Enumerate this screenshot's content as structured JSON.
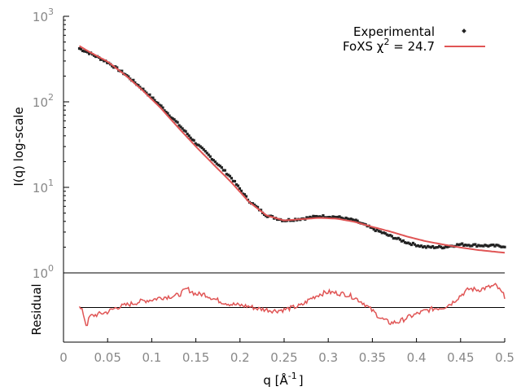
{
  "chart_data": {
    "type": "line",
    "xlabel": "q [Å",
    "xlabel_sup": "-1",
    "xlabel_end": "]",
    "ylabel": "I(q) log-scale",
    "y2label": "Residual",
    "xlim": [
      0,
      0.5
    ],
    "ylim": [
      1,
      1000
    ],
    "yscale": "log",
    "grid": false,
    "legend_position": "top-right",
    "x_ticks": [
      "0",
      "0.05",
      "0.1",
      "0.15",
      "0.2",
      "0.25",
      "0.3",
      "0.35",
      "0.4",
      "0.45",
      "0.5"
    ],
    "y_ticks": [
      {
        "base": "10",
        "exp": "0"
      },
      {
        "base": "10",
        "exp": "1"
      },
      {
        "base": "10",
        "exp": "2"
      },
      {
        "base": "10",
        "exp": "3"
      }
    ],
    "legend": {
      "experimental": "Experimental",
      "fit_prefix": "FoXS χ",
      "fit_sup": "2",
      "fit_suffix": " = 24.7"
    },
    "colors": {
      "experimental": "#222222",
      "fit": "#e05555",
      "axis": "#000000",
      "tick_label": "#888888"
    },
    "series": [
      {
        "name": "Experimental",
        "x": [
          0.018,
          0.03,
          0.05,
          0.07,
          0.09,
          0.11,
          0.13,
          0.15,
          0.17,
          0.19,
          0.21,
          0.23,
          0.25,
          0.27,
          0.29,
          0.31,
          0.33,
          0.35,
          0.37,
          0.39,
          0.41,
          0.43,
          0.45,
          0.47,
          0.5
        ],
        "y": [
          420,
          370,
          290,
          210,
          140,
          90,
          55,
          33,
          21,
          13,
          7.0,
          4.7,
          4.1,
          4.3,
          4.6,
          4.5,
          4.1,
          3.3,
          2.7,
          2.25,
          2.0,
          2.0,
          2.15,
          2.1,
          2.05
        ]
      },
      {
        "name": "FoXS χ² = 24.7",
        "x": [
          0.018,
          0.03,
          0.05,
          0.07,
          0.09,
          0.11,
          0.13,
          0.15,
          0.17,
          0.19,
          0.21,
          0.23,
          0.25,
          0.27,
          0.29,
          0.31,
          0.33,
          0.35,
          0.37,
          0.39,
          0.41,
          0.43,
          0.45,
          0.47,
          0.5
        ],
        "y": [
          450,
          380,
          295,
          205,
          135,
          85,
          50,
          30,
          18.5,
          11.5,
          6.8,
          4.7,
          4.1,
          4.25,
          4.4,
          4.3,
          3.95,
          3.45,
          3.05,
          2.65,
          2.35,
          2.15,
          1.98,
          1.85,
          1.72
        ]
      }
    ],
    "residual": {
      "x": [
        0.018,
        0.022,
        0.026,
        0.03,
        0.04,
        0.05,
        0.06,
        0.07,
        0.08,
        0.09,
        0.1,
        0.11,
        0.12,
        0.13,
        0.14,
        0.15,
        0.16,
        0.17,
        0.18,
        0.19,
        0.2,
        0.21,
        0.22,
        0.23,
        0.24,
        0.25,
        0.26,
        0.27,
        0.28,
        0.29,
        0.3,
        0.31,
        0.32,
        0.33,
        0.34,
        0.35,
        0.36,
        0.37,
        0.38,
        0.39,
        0.4,
        0.41,
        0.42,
        0.43,
        0.44,
        0.45,
        0.46,
        0.47,
        0.48,
        0.49,
        0.5
      ],
      "y": [
        0.0,
        -0.2,
        -0.85,
        -0.4,
        -0.3,
        -0.2,
        0.0,
        0.1,
        0.2,
        0.3,
        0.35,
        0.45,
        0.5,
        0.55,
        0.85,
        0.6,
        0.6,
        0.4,
        0.25,
        0.15,
        0.1,
        0.05,
        -0.05,
        -0.1,
        -0.15,
        -0.1,
        0.0,
        0.1,
        0.4,
        0.6,
        0.7,
        0.65,
        0.6,
        0.45,
        0.2,
        -0.15,
        -0.5,
        -0.7,
        -0.65,
        -0.45,
        -0.3,
        -0.15,
        -0.05,
        0.0,
        0.2,
        0.55,
        0.85,
        0.8,
        0.9,
        1.0,
        0.5
      ],
      "reference": 0,
      "ylim": [
        -1.2,
        1.2
      ]
    }
  }
}
